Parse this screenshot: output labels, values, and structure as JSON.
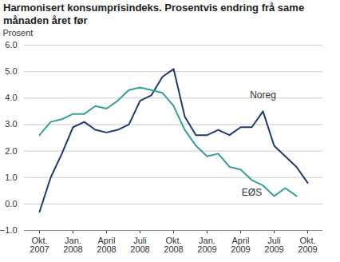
{
  "chart_data": {
    "type": "line",
    "title": "Harmonisert konsumprisindeks. Prosentvis endring frå same månaden året før",
    "y_label": "Prosent",
    "categories": [
      "Okt. 2007",
      null,
      null,
      "Jan. 2008",
      null,
      null,
      "April 2008",
      null,
      null,
      "Juli 2008",
      null,
      null,
      "Okt. 2008",
      null,
      null,
      "Jan. 2009",
      null,
      null,
      "April 2009",
      null,
      null,
      "Juli 2009",
      null,
      null,
      "Okt. 2009"
    ],
    "series": [
      {
        "name": "Noreg",
        "color": "#1f3a72",
        "values": [
          -0.3,
          1.0,
          1.9,
          2.9,
          3.1,
          2.8,
          2.7,
          2.8,
          3.0,
          3.9,
          4.1,
          4.8,
          5.1,
          3.3,
          2.6,
          2.6,
          2.8,
          2.6,
          2.9,
          2.9,
          3.5,
          2.2,
          1.8,
          1.4,
          0.8
        ]
      },
      {
        "name": "EØS",
        "color": "#35a095",
        "values": [
          2.6,
          3.1,
          3.2,
          3.4,
          3.4,
          3.7,
          3.6,
          3.9,
          4.3,
          4.4,
          4.3,
          4.2,
          3.7,
          2.8,
          2.2,
          1.8,
          1.9,
          1.4,
          1.3,
          0.9,
          0.7,
          0.3,
          0.6,
          0.3,
          null
        ]
      }
    ],
    "ylim": [
      -1,
      6
    ],
    "yticks": [
      -1,
      0,
      1,
      2,
      3,
      4,
      5,
      6
    ],
    "grid": true
  }
}
